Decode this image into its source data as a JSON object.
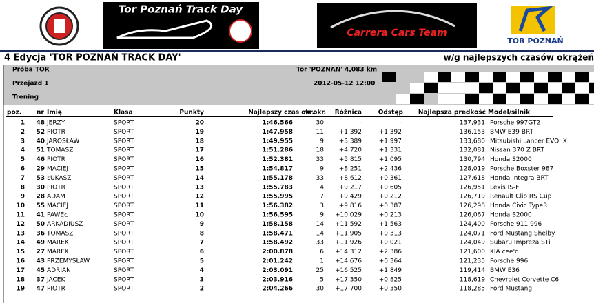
{
  "header": {
    "banner_left": "Tor Poznań Track Day",
    "banner_right": "Carrera Cars Team",
    "logo_right": "TOR POZNAŃ"
  },
  "title": "4 Edycja 'TOR POZNAŃ TRACK DAY'",
  "subtitle": "w/g najlepszych czasów okrążeń",
  "info": {
    "session": "Próba TOR",
    "run": "Przejazd 1",
    "type": "Trening",
    "track": "Tor 'POZNAŃ' 4,083 km",
    "date": "2012-05-12 12:00"
  },
  "table": {
    "columns": [
      "poz.",
      "nr",
      "Imię",
      "Klasa",
      "Punkty",
      "Najlepszy czas okr.",
      "w okr.",
      "Różnica",
      "Odstęp",
      "Najlepsza predkość",
      "Model/silnik"
    ],
    "rows": [
      [
        "1",
        "48",
        "JERZY",
        "SPORT",
        "20",
        "1:46.566",
        "30",
        "-",
        "-",
        "137,931",
        "Porsche 997GT2"
      ],
      [
        "2",
        "52",
        "PIOTR",
        "SPORT",
        "19",
        "1:47.958",
        "11",
        "+1.392",
        "+1.392",
        "136,153",
        "BMW E39 BRT"
      ],
      [
        "3",
        "40",
        "JAROSŁAW",
        "SPORT",
        "18",
        "1:49.955",
        "9",
        "+3.389",
        "+1.997",
        "133,680",
        "Mitsubishi Lancer EVO IX"
      ],
      [
        "4",
        "51",
        "TOMASZ",
        "SPORT",
        "17",
        "1:51.286",
        "18",
        "+4.720",
        "+1.331",
        "132,081",
        "Nissan 370 Z BRT"
      ],
      [
        "5",
        "46",
        "PIOTR",
        "SPORT",
        "16",
        "1:52.381",
        "33",
        "+5.815",
        "+1.095",
        "130,794",
        "Honda S2000"
      ],
      [
        "6",
        "29",
        "MACIEJ",
        "SPORT",
        "15",
        "1:54.817",
        "9",
        "+8.251",
        "+2.436",
        "128,019",
        "Porsche Boxster 987"
      ],
      [
        "7",
        "53",
        "ŁUKASZ",
        "SPORT",
        "14",
        "1:55.178",
        "33",
        "+8.612",
        "+0.361",
        "127,618",
        "Honda Integra BRT"
      ],
      [
        "8",
        "30",
        "PIOTR",
        "SPORT",
        "13",
        "1:55.783",
        "4",
        "+9.217",
        "+0.605",
        "126,951",
        "Lexis IS-F"
      ],
      [
        "9",
        "28",
        "ADAM",
        "SPORT",
        "12",
        "1:55.995",
        "7",
        "+9.429",
        "+0.212",
        "126,719",
        "Renault Clio RS Cup"
      ],
      [
        "10",
        "55",
        "MACIEJ",
        "SPORT",
        "11",
        "1:56.382",
        "3",
        "+9.816",
        "+0.387",
        "126,298",
        "Honda Civic TypeR"
      ],
      [
        "11",
        "41",
        "PAWEŁ",
        "SPORT",
        "10",
        "1:56.595",
        "9",
        "+10.029",
        "+0.213",
        "126,067",
        "Honda S2000"
      ],
      [
        "12",
        "50",
        "ARKADIUSZ",
        "SPORT",
        "9",
        "1:58.158",
        "14",
        "+11.592",
        "+1.563",
        "124,400",
        "Porsche 911 996"
      ],
      [
        "13",
        "36",
        "TOMASZ",
        "SPORT",
        "8",
        "1:58.471",
        "14",
        "+11.905",
        "+0.313",
        "124,071",
        "Ford Mustang Shelby"
      ],
      [
        "14",
        "49",
        "MAREK",
        "SPORT",
        "7",
        "1:58.492",
        "33",
        "+11.926",
        "+0.021",
        "124,049",
        "Subaru Impreza STi"
      ],
      [
        "15",
        "27",
        "MAREK",
        "SPORT",
        "6",
        "2:00.878",
        "6",
        "+14.312",
        "+2.386",
        "121,600",
        "KIA cee'd"
      ],
      [
        "16",
        "43",
        "PRZEMYSŁAW",
        "SPORT",
        "5",
        "2:01.242",
        "1",
        "+14.676",
        "+0.364",
        "121,235",
        "Porsche 996"
      ],
      [
        "17",
        "45",
        "ADRIAN",
        "SPORT",
        "4",
        "2:03.091",
        "25",
        "+16.525",
        "+1.849",
        "119,414",
        "BMW E36"
      ],
      [
        "18",
        "37",
        "JACEK",
        "SPORT",
        "3",
        "2:03.916",
        "5",
        "+17.350",
        "+0.825",
        "118,619",
        "Chevrolet Corvette C6"
      ],
      [
        "19",
        "47",
        "PIOTR",
        "SPORT",
        "2",
        "2:04.266",
        "30",
        "+17.700",
        "+0.350",
        "118,285",
        "Ford Mustang"
      ]
    ]
  }
}
